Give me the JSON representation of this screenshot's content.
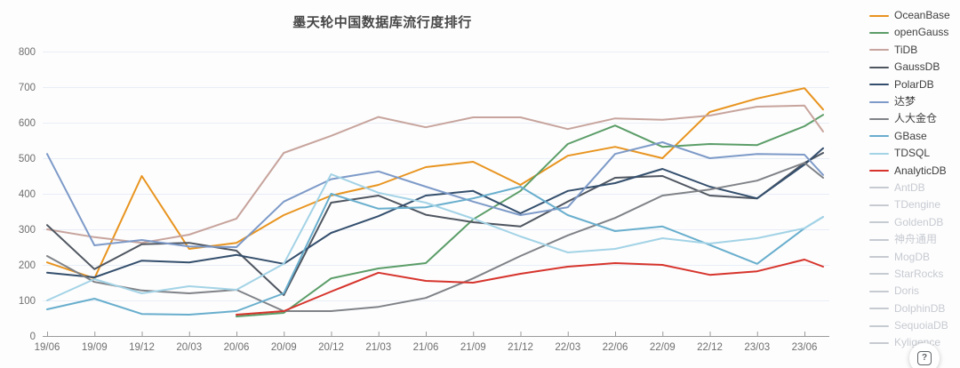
{
  "title": "墨天轮中国数据库流行度排行",
  "help_button": {
    "glyph": "?"
  },
  "chart_data": {
    "type": "line",
    "title": "墨天轮中国数据库流行度排行",
    "x_ticks": [
      "19/06",
      "19/09",
      "19/12",
      "20/03",
      "20/06",
      "20/09",
      "20/12",
      "21/03",
      "21/06",
      "21/09",
      "21/12",
      "22/03",
      "22/06",
      "22/09",
      "22/12",
      "23/03",
      "23/06"
    ],
    "x_samples": [
      "19/06",
      "19/09",
      "19/12",
      "20/03",
      "20/06",
      "20/09",
      "20/12",
      "21/03",
      "21/06",
      "21/09",
      "21/12",
      "22/03",
      "22/06",
      "22/09",
      "22/12",
      "23/03",
      "23/06",
      "23/08"
    ],
    "ylim": [
      0,
      800
    ],
    "y_ticks": [
      0,
      100,
      200,
      300,
      400,
      500,
      600,
      700,
      800
    ],
    "grid": true,
    "legend_position": "right",
    "colors": {
      "grid": "#e8eef7",
      "axis": "#9a9a9a",
      "tick_text": "#6f6f6f",
      "inactive": "#c6cad1"
    },
    "series": [
      {
        "name": "OceanBase",
        "color": "#e8941f",
        "active": true,
        "values": [
          207,
          162,
          450,
          245,
          262,
          340,
          395,
          425,
          475,
          490,
          425,
          507,
          532,
          500,
          630,
          668,
          697,
          637
        ]
      },
      {
        "name": "openGauss",
        "color": "#5b9d68",
        "active": true,
        "values": [
          null,
          null,
          null,
          null,
          55,
          65,
          162,
          190,
          205,
          328,
          408,
          540,
          592,
          532,
          540,
          537,
          590,
          622
        ]
      },
      {
        "name": "TiDB",
        "color": "#c7a49d",
        "active": true,
        "values": [
          300,
          278,
          262,
          285,
          330,
          515,
          563,
          616,
          587,
          615,
          615,
          582,
          612,
          608,
          620,
          645,
          648,
          575
        ]
      },
      {
        "name": "GaussDB",
        "color": "#4f5660",
        "active": true,
        "values": [
          312,
          188,
          258,
          262,
          240,
          115,
          375,
          395,
          341,
          320,
          308,
          378,
          445,
          450,
          395,
          387,
          487,
          515
        ]
      },
      {
        "name": "PolarDB",
        "color": "#344f6d",
        "active": true,
        "values": [
          178,
          165,
          212,
          207,
          228,
          203,
          290,
          337,
          395,
          408,
          345,
          408,
          430,
          470,
          420,
          387,
          482,
          528
        ]
      },
      {
        "name": "达梦",
        "color": "#7d9ac8",
        "active": true,
        "values": [
          512,
          255,
          270,
          252,
          250,
          378,
          441,
          463,
          420,
          378,
          340,
          362,
          512,
          545,
          500,
          512,
          510,
          453
        ]
      },
      {
        "name": "人大金仓",
        "color": "#7f8287",
        "active": true,
        "values": [
          225,
          152,
          128,
          120,
          130,
          70,
          70,
          82,
          107,
          162,
          225,
          283,
          332,
          395,
          412,
          437,
          487,
          445
        ]
      },
      {
        "name": "GBase",
        "color": "#68aecd",
        "active": true,
        "values": [
          75,
          105,
          62,
          60,
          70,
          120,
          400,
          358,
          362,
          387,
          420,
          340,
          295,
          308,
          256,
          203,
          303,
          335
        ]
      },
      {
        "name": "TDSQL",
        "color": "#a3d3e6",
        "active": true,
        "values": [
          100,
          160,
          120,
          140,
          130,
          203,
          455,
          403,
          375,
          330,
          280,
          235,
          245,
          275,
          260,
          275,
          303,
          335
        ]
      },
      {
        "name": "AnalyticDB",
        "color": "#d6342c",
        "active": true,
        "values": [
          null,
          null,
          null,
          null,
          60,
          70,
          125,
          178,
          155,
          150,
          175,
          195,
          205,
          200,
          172,
          182,
          215,
          195
        ]
      },
      {
        "name": "AntDB",
        "color": "#c6cad1",
        "active": false,
        "values": []
      },
      {
        "name": "TDengine",
        "color": "#c6cad1",
        "active": false,
        "values": []
      },
      {
        "name": "GoldenDB",
        "color": "#c6cad1",
        "active": false,
        "values": []
      },
      {
        "name": "神舟通用",
        "color": "#c6cad1",
        "active": false,
        "values": []
      },
      {
        "name": "MogDB",
        "color": "#c6cad1",
        "active": false,
        "values": []
      },
      {
        "name": "StarRocks",
        "color": "#c6cad1",
        "active": false,
        "values": []
      },
      {
        "name": "Doris",
        "color": "#c6cad1",
        "active": false,
        "values": []
      },
      {
        "name": "DolphinDB",
        "color": "#c6cad1",
        "active": false,
        "values": []
      },
      {
        "name": "SequoiaDB",
        "color": "#c6cad1",
        "active": false,
        "values": []
      },
      {
        "name": "Kyligence",
        "color": "#c6cad1",
        "active": false,
        "values": []
      }
    ]
  }
}
